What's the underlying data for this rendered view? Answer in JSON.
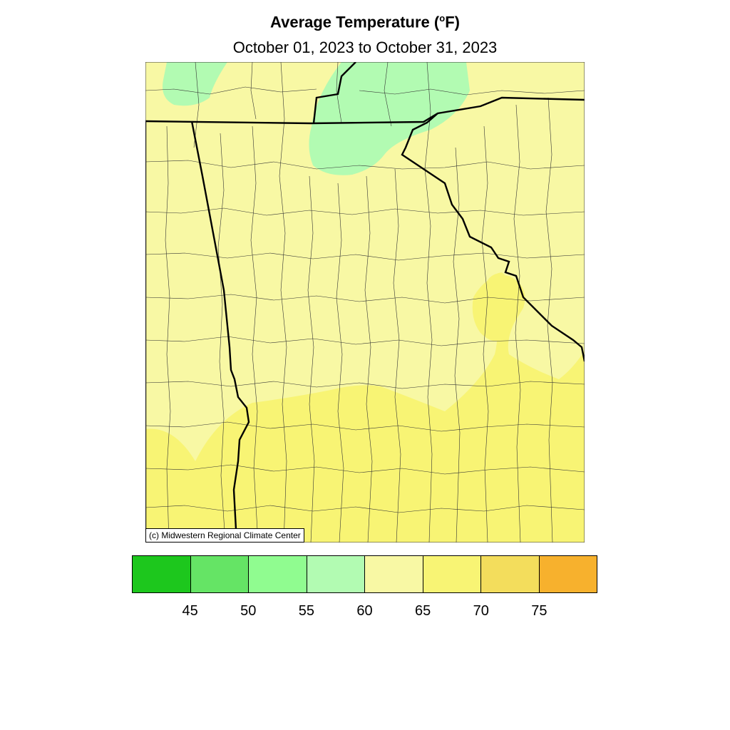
{
  "header": {
    "title_main": "Average Temperature (",
    "title_degree": "o",
    "title_unit": "F)",
    "subtitle": "October 01, 2023 to October 31, 2023"
  },
  "credit": "(c) Midwestern Regional Climate Center",
  "legend": {
    "colors": [
      "#1dc71d",
      "#65e465",
      "#90fc90",
      "#b2fbb2",
      "#f8f8a4",
      "#f8f474",
      "#f3dd5c",
      "#f7b12d"
    ],
    "ticks": [
      "45",
      "50",
      "55",
      "60",
      "65",
      "70",
      "75"
    ]
  },
  "map_colors": {
    "band_55_60": "#b2fbb2",
    "band_60_65": "#f8f8a4",
    "band_65_70": "#f8f474",
    "border": "#000000"
  }
}
